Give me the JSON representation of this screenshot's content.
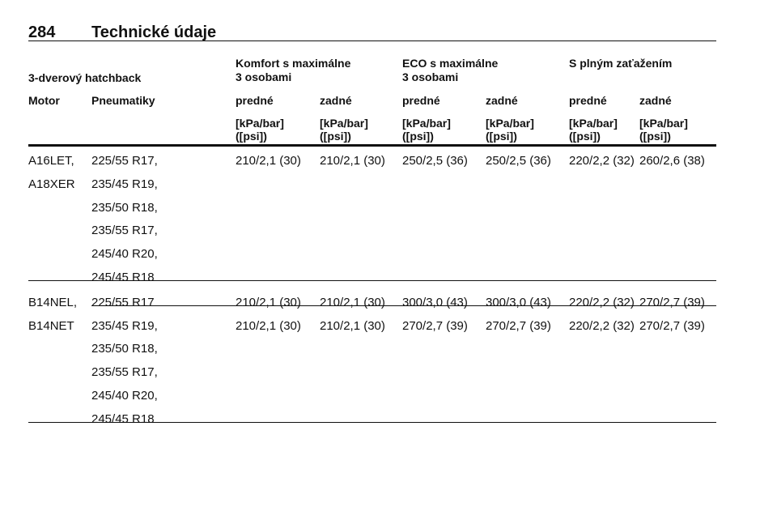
{
  "header": {
    "page_number": "284",
    "title": "Technické údaje"
  },
  "table": {
    "caption": "3-dverový hatchback",
    "groups": [
      [
        "Komfort s maximálne",
        "3 osobami"
      ],
      [
        "ECO s maximálne",
        "3 osobami"
      ],
      [
        "S plným zaťažením"
      ]
    ],
    "columns": [
      "Motor",
      "Pneumatiky",
      "predné",
      "zadné",
      "predné",
      "zadné",
      "predné",
      "zadné"
    ],
    "units": [
      [
        "[kPa/bar]",
        "([psi])"
      ],
      [
        "[kPa/bar]",
        "([psi])"
      ],
      [
        "[kPa/bar]",
        "([psi])"
      ],
      [
        "[kPa/bar]",
        "([psi])"
      ],
      [
        "[kPa/bar]",
        "([psi])"
      ],
      [
        "[kPa/bar]",
        "([psi])"
      ]
    ],
    "rows": [
      {
        "engines": [
          "A16LET,",
          "A18XER"
        ],
        "subrows": [
          {
            "tires": [
              "225/55 R17,",
              "235/45 R19,",
              "235/50 R18,",
              "235/55 R17,",
              "245/40 R20,",
              "245/45 R18"
            ],
            "values": [
              "210/2,1 (30)",
              "210/2,1 (30)",
              "250/2,5 (36)",
              "250/2,5 (36)",
              "220/2,2 (32)",
              "260/2,6 (38)"
            ]
          }
        ]
      },
      {
        "engines": [
          "B14NEL,",
          "B14NET"
        ],
        "subrows": [
          {
            "tires": [
              "225/55 R17"
            ],
            "values": [
              "210/2,1 (30)",
              "210/2,1 (30)",
              "300/3,0 (43)",
              "300/3,0 (43)",
              "220/2,2 (32)",
              "270/2,7 (39)"
            ]
          },
          {
            "tires": [
              "235/45 R19,",
              "235/50 R18,",
              "235/55 R17,",
              "245/40 R20,",
              "245/45 R18"
            ],
            "values": [
              "210/2,1 (30)",
              "210/2,1 (30)",
              "270/2,7 (39)",
              "270/2,7 (39)",
              "220/2,2 (32)",
              "270/2,7 (39)"
            ]
          }
        ]
      }
    ]
  }
}
